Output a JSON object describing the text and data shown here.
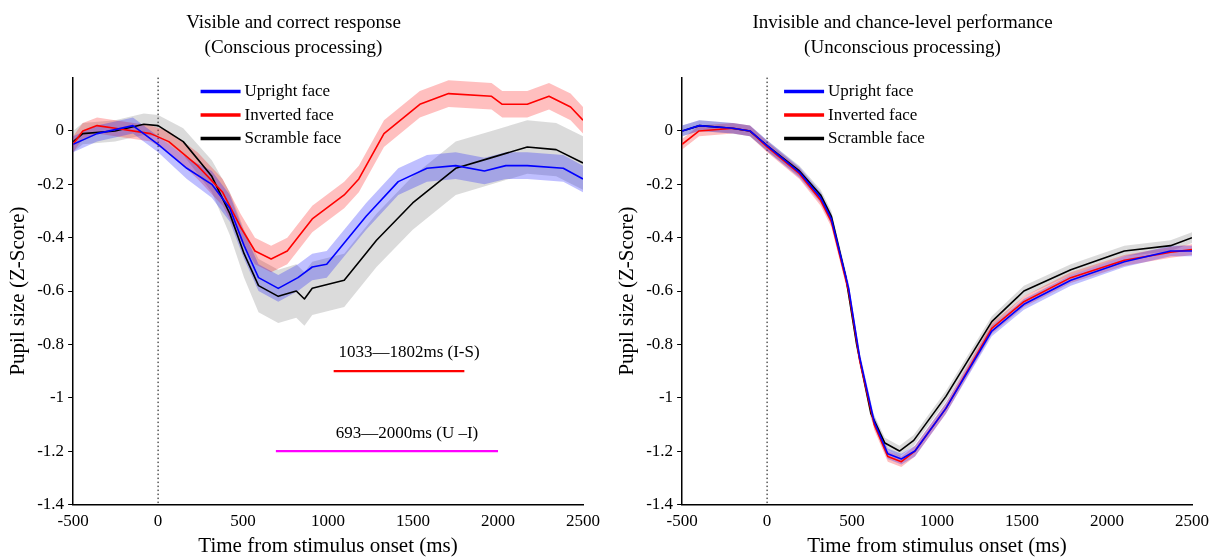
{
  "chart_data": [
    {
      "type": "line",
      "title": "Visible and correct response",
      "subtitle": "(Conscious processing)",
      "xlabel": "Time from stimulus onset (ms)",
      "ylabel": "Pupil size (Z-Score)",
      "xlim": [
        -500,
        2500
      ],
      "xticks": [
        -500,
        0,
        500,
        1000,
        1500,
        2000,
        2500
      ],
      "ylim": [
        -1.4,
        0.2
      ],
      "yticks": [
        -1.4,
        -1.2,
        -1,
        -0.8,
        -0.6,
        -0.4,
        -0.2,
        0
      ],
      "legend": "top",
      "series": [
        {
          "name": "Upright face",
          "color": "#0000ff",
          "x": [
            -500,
            -359,
            -148,
            0,
            169,
            316,
            422,
            506,
            591,
            707,
            823,
            907,
            992,
            1224,
            1413,
            1582,
            1751,
            1920,
            2046,
            2172,
            2384,
            2500
          ],
          "values": [
            -0.05,
            -0.01,
            0.02,
            -0.05,
            -0.14,
            -0.2,
            -0.29,
            -0.43,
            -0.55,
            -0.59,
            -0.55,
            -0.51,
            -0.5,
            -0.32,
            -0.19,
            -0.14,
            -0.13,
            -0.15,
            -0.13,
            -0.13,
            -0.14,
            -0.18
          ],
          "lower": [
            -0.08,
            -0.04,
            -0.01,
            -0.08,
            -0.18,
            -0.25,
            -0.34,
            -0.48,
            -0.6,
            -0.64,
            -0.6,
            -0.56,
            -0.55,
            -0.37,
            -0.24,
            -0.19,
            -0.18,
            -0.2,
            -0.18,
            -0.18,
            -0.19,
            -0.23
          ],
          "upper": [
            -0.02,
            0.02,
            0.05,
            -0.02,
            -0.1,
            -0.15,
            -0.24,
            -0.38,
            -0.5,
            -0.54,
            -0.5,
            -0.46,
            -0.45,
            -0.27,
            -0.14,
            -0.09,
            -0.08,
            -0.1,
            -0.08,
            -0.08,
            -0.09,
            -0.13
          ]
        },
        {
          "name": "Inverted face",
          "color": "#ff0000",
          "x": [
            -500,
            -443,
            -359,
            -253,
            -44,
            63,
            232,
            380,
            485,
            570,
            665,
            760,
            907,
            1095,
            1181,
            1329,
            1540,
            1709,
            1962,
            2025,
            2172,
            2300,
            2427,
            2500
          ],
          "values": [
            -0.05,
            0,
            0.02,
            0.01,
            -0.01,
            -0.04,
            -0.13,
            -0.23,
            -0.36,
            -0.45,
            -0.48,
            -0.45,
            -0.33,
            -0.24,
            -0.18,
            -0.01,
            0.1,
            0.14,
            0.13,
            0.1,
            0.1,
            0.13,
            0.09,
            0.04
          ],
          "lower": [
            -0.08,
            -0.03,
            -0.01,
            -0.02,
            -0.04,
            -0.08,
            -0.18,
            -0.28,
            -0.41,
            -0.5,
            -0.53,
            -0.5,
            -0.38,
            -0.29,
            -0.23,
            -0.06,
            0.05,
            0.09,
            0.08,
            0.05,
            0.05,
            0.08,
            0.04,
            -0.01
          ],
          "upper": [
            -0.02,
            0.03,
            0.05,
            0.04,
            0.02,
            0,
            -0.08,
            -0.18,
            -0.31,
            -0.4,
            -0.43,
            -0.4,
            -0.28,
            -0.19,
            -0.13,
            0.04,
            0.15,
            0.19,
            0.18,
            0.15,
            0.15,
            0.18,
            0.14,
            0.09
          ]
        },
        {
          "name": "Scramble face",
          "color": "#000000",
          "x": [
            -500,
            -443,
            -253,
            -84,
            0,
            148,
            316,
            422,
            506,
            591,
            707,
            813,
            861,
            907,
            1095,
            1285,
            1498,
            1751,
            1962,
            2172,
            2342,
            2500
          ],
          "values": [
            -0.04,
            -0.01,
            0,
            0.025,
            0.02,
            -0.04,
            -0.17,
            -0.31,
            -0.46,
            -0.58,
            -0.62,
            -0.6,
            -0.63,
            -0.59,
            -0.56,
            -0.41,
            -0.27,
            -0.14,
            -0.1,
            -0.06,
            -0.07,
            -0.12
          ],
          "lower": [
            -0.08,
            -0.05,
            -0.04,
            -0.015,
            -0.02,
            -0.09,
            -0.23,
            -0.39,
            -0.55,
            -0.68,
            -0.72,
            -0.7,
            -0.73,
            -0.69,
            -0.66,
            -0.51,
            -0.37,
            -0.24,
            -0.2,
            -0.16,
            -0.17,
            -0.22
          ],
          "upper": [
            0,
            0.03,
            0.04,
            0.065,
            0.06,
            0.01,
            -0.11,
            -0.23,
            -0.37,
            -0.48,
            -0.52,
            -0.5,
            -0.53,
            -0.49,
            -0.46,
            -0.31,
            -0.17,
            -0.04,
            0,
            0.04,
            0.03,
            -0.02
          ]
        },
        {
          "type": "line",
          "color": "#ff0000",
          "x": [
            1033,
            1802
          ],
          "values": [
            -0.9,
            -0.9
          ]
        },
        {
          "type": "line",
          "color": "#ff00ff",
          "x": [
            693,
            2000
          ],
          "values": [
            -1.2,
            -1.2
          ]
        }
      ],
      "ref_lines": [
        {
          "axis": "x",
          "value": 0,
          "color": "#000000",
          "line_style": "dotted"
        }
      ],
      "annotations": [
        "1033—1802ms (I-S)",
        "693—2000ms (U –I)"
      ]
    },
    {
      "type": "line",
      "title": "Invisible and chance-level performance",
      "subtitle": "(Unconscious processing)",
      "xlabel": "Time from stimulus onset (ms)",
      "ylabel": "Pupil size (Z-Score)",
      "xlim": [
        -500,
        2500
      ],
      "xticks": [
        -500,
        0,
        500,
        1000,
        1500,
        2000,
        2500
      ],
      "ylim": [
        -1.4,
        0.2
      ],
      "yticks": [
        -1.4,
        -1.2,
        -1,
        -0.8,
        -0.6,
        -0.4,
        -0.2,
        0
      ],
      "legend": "top left",
      "series": [
        {
          "name": "Upright face",
          "color": "#0000ff",
          "x": [
            -500,
            -400,
            -200,
            -100,
            0,
            190,
            315,
            378,
            480,
            545,
            630,
            710,
            790,
            870,
            1052,
            1322,
            1511,
            1787,
            2102,
            2374,
            2500
          ],
          "values": [
            0,
            0.02,
            0.01,
            0,
            -0.055,
            -0.155,
            -0.25,
            -0.33,
            -0.59,
            -0.85,
            -1.09,
            -1.21,
            -1.23,
            -1.2,
            -1.04,
            -0.75,
            -0.65,
            -0.56,
            -0.49,
            -0.45,
            -0.45
          ],
          "lower": [
            -0.02,
            0,
            -0.01,
            -0.02,
            -0.075,
            -0.175,
            -0.27,
            -0.35,
            -0.61,
            -0.87,
            -1.11,
            -1.23,
            -1.25,
            -1.22,
            -1.06,
            -0.77,
            -0.67,
            -0.58,
            -0.51,
            -0.47,
            -0.47
          ],
          "upper": [
            0.02,
            0.04,
            0.03,
            0.02,
            -0.035,
            -0.135,
            -0.23,
            -0.31,
            -0.57,
            -0.83,
            -1.07,
            -1.19,
            -1.21,
            -1.18,
            -1.02,
            -0.73,
            -0.63,
            -0.54,
            -0.47,
            -0.43,
            -0.43
          ]
        },
        {
          "name": "Inverted face",
          "color": "#ff0000",
          "x": [
            -500,
            -400,
            -200,
            -100,
            0,
            190,
            315,
            378,
            480,
            545,
            630,
            710,
            790,
            870,
            1052,
            1322,
            1511,
            1787,
            2102,
            2374,
            2500
          ],
          "values": [
            -0.05,
            0,
            0.01,
            0,
            -0.06,
            -0.16,
            -0.26,
            -0.34,
            -0.6,
            -0.86,
            -1.1,
            -1.22,
            -1.24,
            -1.2,
            -1.04,
            -0.74,
            -0.64,
            -0.55,
            -0.485,
            -0.455,
            -0.445
          ],
          "lower": [
            -0.07,
            -0.02,
            -0.01,
            -0.02,
            -0.08,
            -0.18,
            -0.28,
            -0.36,
            -0.62,
            -0.88,
            -1.12,
            -1.24,
            -1.26,
            -1.22,
            -1.06,
            -0.76,
            -0.66,
            -0.57,
            -0.505,
            -0.475,
            -0.465
          ],
          "upper": [
            -0.03,
            0.02,
            0.03,
            0.02,
            -0.04,
            -0.14,
            -0.24,
            -0.32,
            -0.58,
            -0.84,
            -1.08,
            -1.2,
            -1.22,
            -1.18,
            -1.02,
            -0.72,
            -0.62,
            -0.53,
            -0.465,
            -0.435,
            -0.425
          ]
        },
        {
          "name": "Scramble face",
          "color": "#000000",
          "x": [
            -500,
            -397,
            -208,
            -103,
            0,
            190,
            315,
            378,
            464,
            527,
            611,
            693,
            779,
            863,
            1052,
            1322,
            1511,
            1787,
            2102,
            2374,
            2500
          ],
          "values": [
            0,
            0.02,
            0.01,
            0,
            -0.055,
            -0.15,
            -0.24,
            -0.32,
            -0.55,
            -0.8,
            -1.06,
            -1.17,
            -1.2,
            -1.16,
            -0.995,
            -0.715,
            -0.6,
            -0.52,
            -0.45,
            -0.43,
            -0.4
          ],
          "lower": [
            -0.02,
            0,
            -0.01,
            -0.02,
            -0.075,
            -0.17,
            -0.26,
            -0.34,
            -0.57,
            -0.82,
            -1.08,
            -1.19,
            -1.22,
            -1.18,
            -1.015,
            -0.735,
            -0.62,
            -0.54,
            -0.47,
            -0.45,
            -0.42
          ],
          "upper": [
            0.02,
            0.04,
            0.03,
            0.02,
            -0.035,
            -0.13,
            -0.22,
            -0.3,
            -0.53,
            -0.78,
            -1.04,
            -1.15,
            -1.18,
            -1.14,
            -0.975,
            -0.695,
            -0.58,
            -0.5,
            -0.43,
            -0.41,
            -0.38
          ]
        }
      ],
      "ref_lines": [
        {
          "axis": "x",
          "value": 0,
          "color": "#000000",
          "line_style": "dotted"
        }
      ]
    }
  ]
}
